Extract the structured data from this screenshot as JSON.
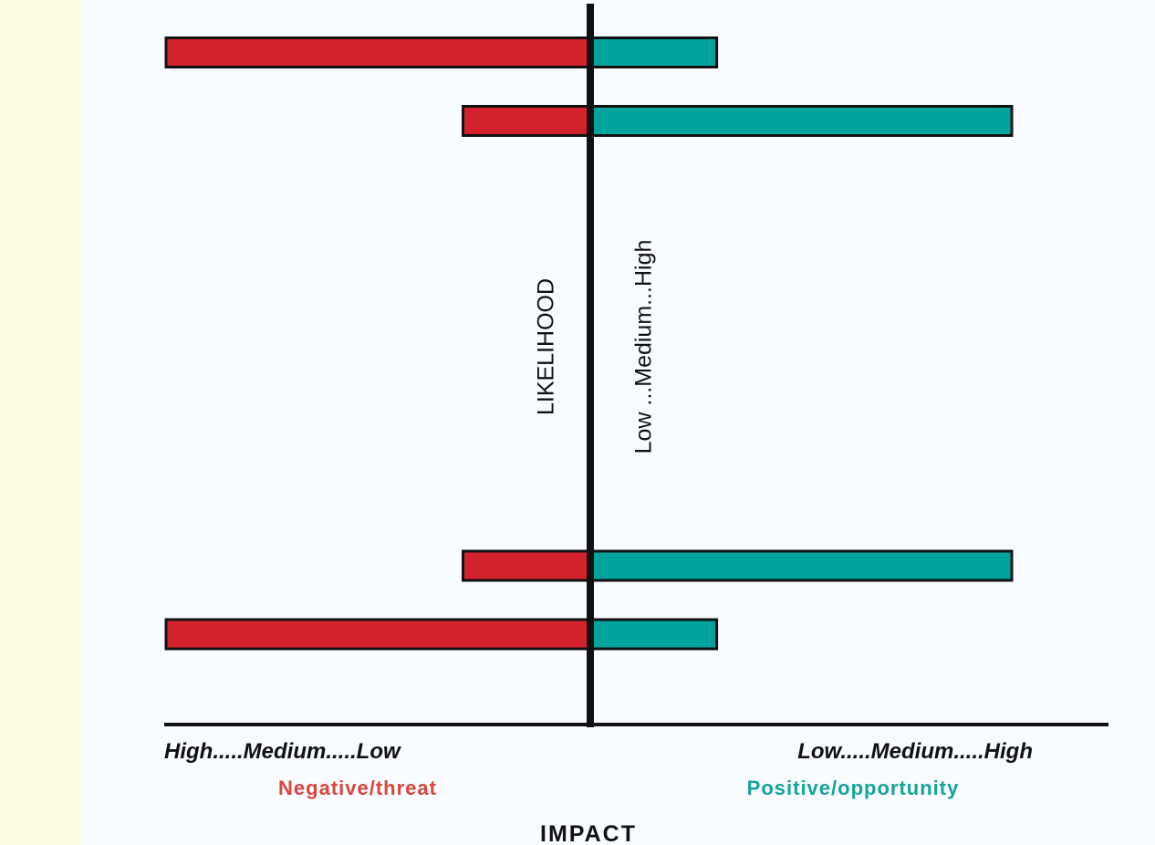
{
  "chart_data": {
    "type": "bar",
    "orientation": "horizontal",
    "diverging": true,
    "rows": [
      {
        "negative_impact": 1.0,
        "positive_impact": 0.3
      },
      {
        "negative_impact": 0.3,
        "positive_impact": 1.0
      },
      {
        "negative_impact": 0.3,
        "positive_impact": 1.0
      },
      {
        "negative_impact": 1.0,
        "positive_impact": 0.3
      }
    ],
    "likelihood_of_rows": [
      0.95,
      0.85,
      0.2,
      0.1
    ],
    "negative_scale_label": "High.....Medium.....Low",
    "positive_scale_label": "Low.....Medium.....High",
    "negative_side_label": "Negative/threat",
    "positive_side_label": "Positive/opportunity",
    "xlabel": "IMPACT",
    "ylabel": "LIKELIHOOD",
    "ylabel_scale": "Low ...Medium...High",
    "colors": {
      "negative": "#d3222e",
      "positive": "#00a49c",
      "axis": "#111111",
      "negative_text": "#d8463c",
      "positive_text": "#16a39b"
    }
  }
}
